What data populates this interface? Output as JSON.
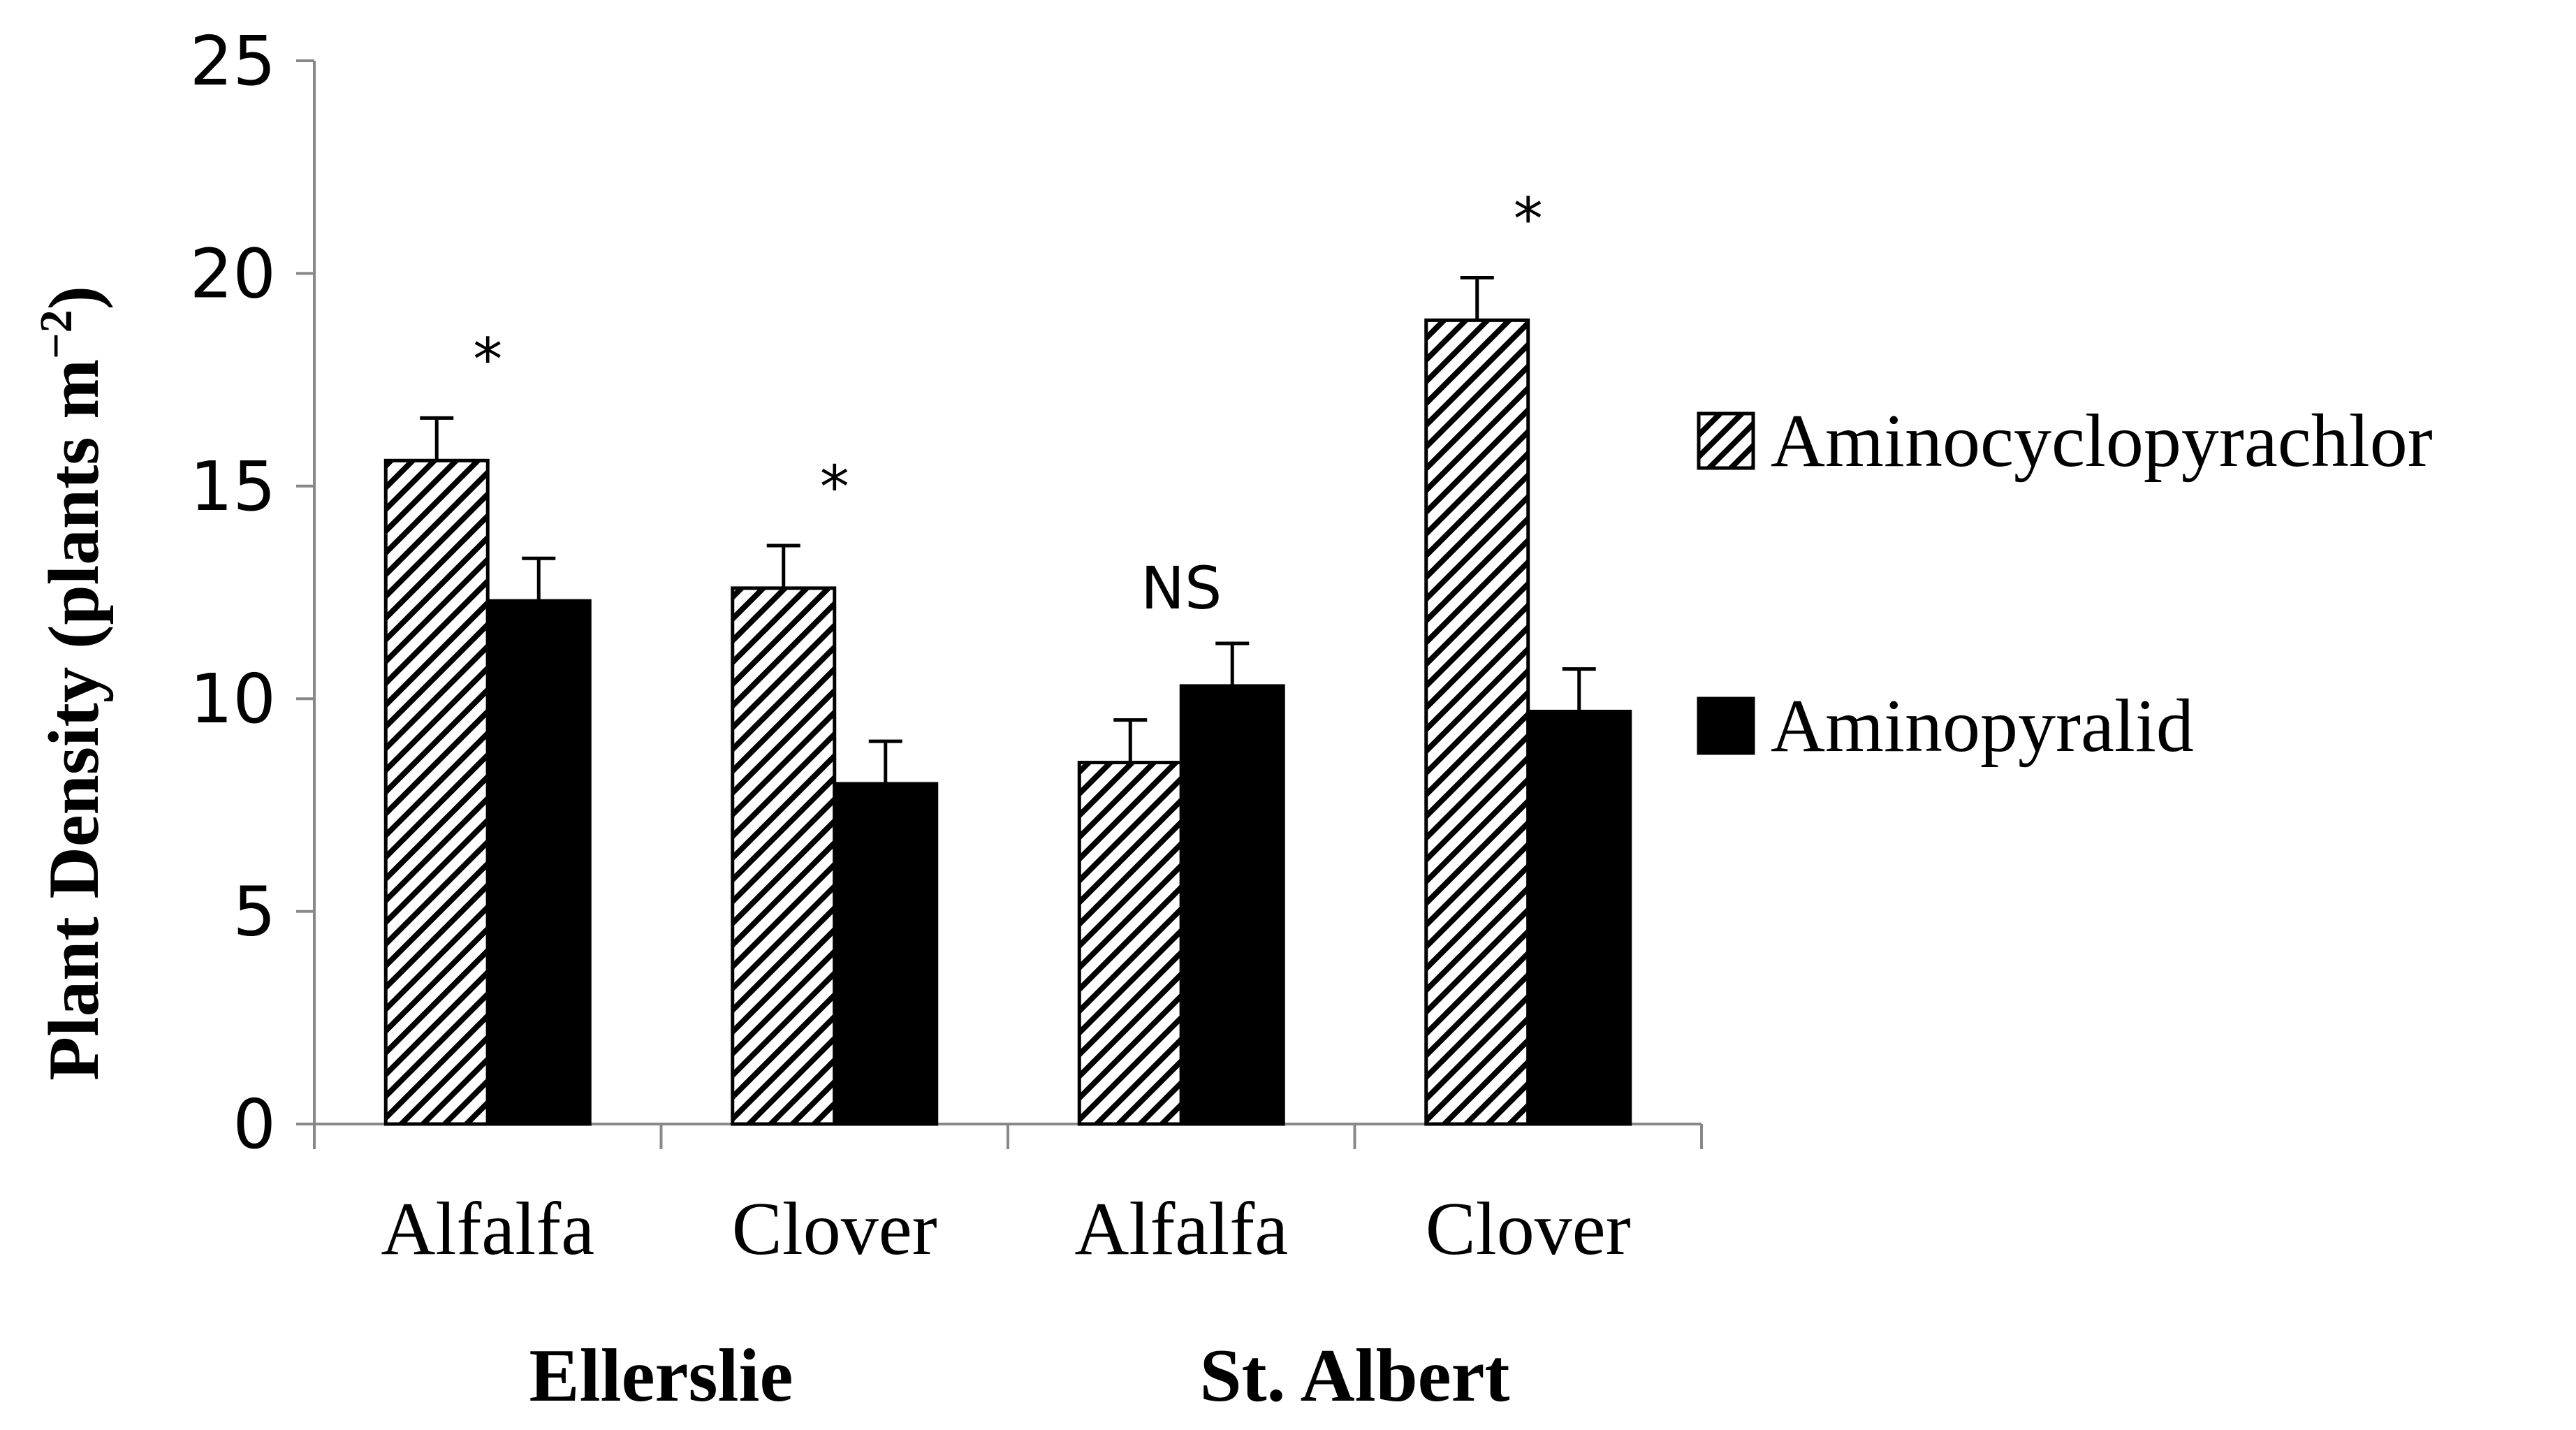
{
  "chart_data": {
    "type": "bar",
    "title": "",
    "xlabel": "",
    "ylabel": "Plant Density (plants m",
    "ylabel_superscript": "−2",
    "ylabel_close": ")",
    "ylim": [
      0,
      25
    ],
    "yticks": [
      0,
      5,
      10,
      15,
      20,
      25
    ],
    "grid": false,
    "categories": [
      "Alfalfa",
      "Clover",
      "Alfalfa",
      "Clover"
    ],
    "groups": [
      {
        "name": "Ellerslie",
        "categories": [
          "Alfalfa",
          "Clover"
        ]
      },
      {
        "name": "St. Albert",
        "categories": [
          "Alfalfa",
          "Clover"
        ]
      }
    ],
    "series": [
      {
        "name": "Aminocyclopyrachlor",
        "pattern": "diagonal-hatch",
        "color": "#000000",
        "values": [
          15.6,
          12.6,
          8.5,
          18.9
        ],
        "errors": [
          1.0,
          1.0,
          1.0,
          1.0
        ]
      },
      {
        "name": "Aminopyralid",
        "pattern": "solid",
        "color": "#000000",
        "values": [
          12.3,
          8.0,
          10.3,
          9.7
        ],
        "errors": [
          1.0,
          1.0,
          1.0,
          1.0
        ]
      }
    ],
    "annotations": [
      "*",
      "*",
      "NS",
      "*"
    ],
    "legend_position": "right"
  }
}
